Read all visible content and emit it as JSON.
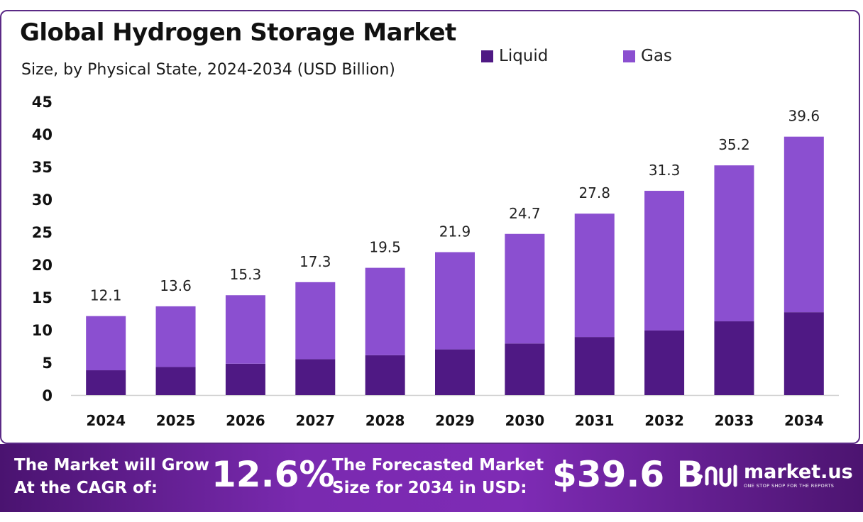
{
  "chart_data": {
    "type": "bar",
    "stacked": true,
    "title": "Global Hydrogen Storage Market",
    "subtitle": "Size, by Physical State, 2024-2034 (USD Billion)",
    "categories": [
      "2024",
      "2025",
      "2026",
      "2027",
      "2028",
      "2029",
      "2030",
      "2031",
      "2032",
      "2033",
      "2034"
    ],
    "series": [
      {
        "name": "Liquid",
        "color": "#4f1984",
        "values": [
          3.8,
          4.3,
          4.8,
          5.5,
          6.1,
          7.0,
          7.9,
          8.9,
          9.9,
          11.3,
          12.7
        ]
      },
      {
        "name": "Gas",
        "color": "#8b4fd0",
        "values": [
          8.3,
          9.3,
          10.5,
          11.8,
          13.4,
          14.9,
          16.8,
          18.9,
          21.4,
          23.9,
          26.9
        ]
      }
    ],
    "totals": [
      12.1,
      13.6,
      15.3,
      17.3,
      19.5,
      21.9,
      24.7,
      27.8,
      31.3,
      35.2,
      39.6
    ],
    "total_labels": [
      "12.1",
      "13.6",
      "15.3",
      "17.3",
      "19.5",
      "21.9",
      "24.7",
      "27.8",
      "31.3",
      "35.2",
      "39.6"
    ],
    "yticks": [
      "0",
      "5",
      "10",
      "15",
      "20",
      "25",
      "30",
      "35",
      "40",
      "45"
    ],
    "ylim": [
      0,
      45
    ],
    "grid": false,
    "legend_position": "top-right"
  },
  "banner": {
    "cagr_label_line1": "The Market will Grow",
    "cagr_label_line2": "At the CAGR of:",
    "cagr_value": "12.6%",
    "forecast_label_line1": "The Forecasted Market",
    "forecast_label_line2": "Size for 2034 in USD:",
    "forecast_value": "$39.6 B"
  },
  "brand": {
    "name": "market.us",
    "tagline": "ONE STOP SHOP FOR THE REPORTS",
    "icon": "market-us-logo-icon"
  }
}
